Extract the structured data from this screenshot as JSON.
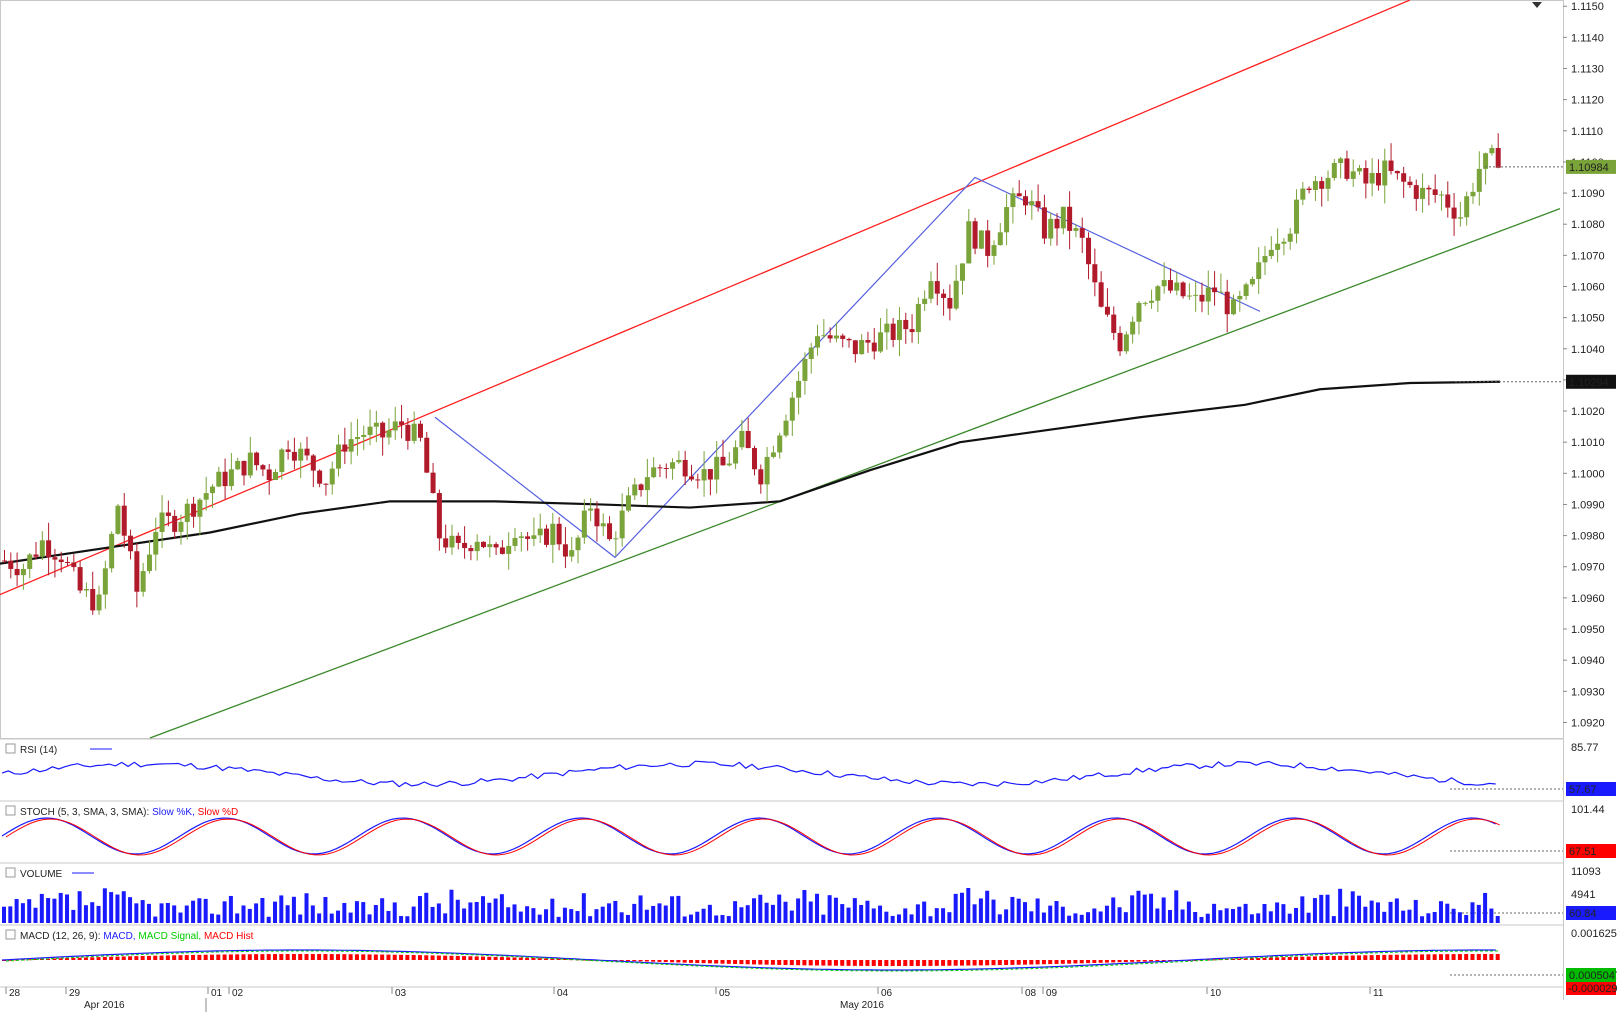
{
  "chart_data": {
    "type": "candlestick",
    "price_axis": {
      "ticks": [
        "1.1150",
        "1.1140",
        "1.1130",
        "1.1120",
        "1.1110",
        "1.1100",
        "1.1090",
        "1.1080",
        "1.1070",
        "1.1060",
        "1.1050",
        "1.1040",
        "1.1030",
        "1.1020",
        "1.1010",
        "1.1000",
        "1.0990",
        "1.0980",
        "1.0970",
        "1.0960",
        "1.0950",
        "1.0940",
        "1.0930",
        "1.0920"
      ],
      "range": [
        1.0915,
        1.1152
      ],
      "last_price": "1.10984",
      "ma_value": "1.10294"
    },
    "time_axis": {
      "day_labels": [
        "28",
        "29",
        "01",
        "02",
        "03",
        "04",
        "05",
        "06",
        "08",
        "09",
        "10",
        "11"
      ],
      "month_labels": [
        "Apr 2016",
        "May 2016"
      ]
    },
    "candles_ohlc_anchor_closes": [
      1.0972,
      1.097,
      1.0978,
      1.0974,
      1.0962,
      1.0958,
      1.099,
      1.0962,
      1.0983,
      1.0985,
      1.099,
      1.0996,
      1.1,
      1.1004,
      1.1,
      1.101,
      1.1004,
      1.0998,
      1.101,
      1.1013,
      1.1012,
      1.1016,
      1.101,
      1.098,
      1.0975,
      1.098,
      1.0973,
      1.0983,
      1.0977,
      1.0982,
      1.0973,
      1.099,
      1.0978,
      1.099,
      1.1,
      1.1003,
      1.1003,
      1.1,
      1.1002,
      1.101,
      1.1,
      1.1015,
      1.103,
      1.1046,
      1.1042,
      1.104,
      1.1043,
      1.1045,
      1.1048,
      1.1065,
      1.1055,
      1.1078,
      1.1072,
      1.1085,
      1.1089,
      1.1078,
      1.1082,
      1.1074,
      1.1052,
      1.1042,
      1.1056,
      1.106,
      1.1058,
      1.1055,
      1.1059,
      1.1052,
      1.106,
      1.1075,
      1.108,
      1.1094,
      1.1096,
      1.1098,
      1.1093,
      1.1097,
      1.1093,
      1.109,
      1.1089,
      1.1083,
      1.1098,
      1.1102
    ],
    "moving_average": {
      "value": "1.10294",
      "points": [
        [
          0,
          1.0971
        ],
        [
          0.07,
          1.0976
        ],
        [
          0.14,
          1.0981
        ],
        [
          0.2,
          1.0987
        ],
        [
          0.26,
          1.0991
        ],
        [
          0.33,
          1.0991
        ],
        [
          0.4,
          1.099
        ],
        [
          0.46,
          1.0989
        ],
        [
          0.52,
          1.0991
        ],
        [
          0.58,
          1.1001
        ],
        [
          0.64,
          1.101
        ],
        [
          0.7,
          1.1014
        ],
        [
          0.76,
          1.1018
        ],
        [
          0.83,
          1.1022
        ],
        [
          0.88,
          1.1027
        ],
        [
          0.94,
          1.1029
        ],
        [
          1.0,
          1.10294
        ]
      ]
    },
    "trendlines": [
      {
        "color": "#ff2020",
        "from": [
          -0.02,
          1.0957
        ],
        "to": [
          0.94,
          1.1152
        ]
      },
      {
        "color": "#3a8a2a",
        "from": [
          0.1,
          1.0915
        ],
        "to": [
          1.04,
          1.1085
        ]
      },
      {
        "color": "#5560e0",
        "zigzag": [
          [
            0.29,
            1.1018
          ],
          [
            0.41,
            1.0973
          ],
          [
            0.65,
            1.1095
          ],
          [
            0.84,
            1.1052
          ]
        ]
      }
    ],
    "indicators": [
      {
        "label": "RSI (14)",
        "series": [
          "RSI"
        ],
        "axis_top": "85.77",
        "value": "57.67",
        "value_color": "#1a1aff"
      },
      {
        "label": "STOCH (5, 3, SMA, 3, SMA):",
        "series": [
          "Slow %K",
          "Slow %D"
        ],
        "series_colors": [
          "#1a1aff",
          "#ff0000"
        ],
        "axis_top": "101.44",
        "value": "67.51",
        "value_color": "#ff0000"
      },
      {
        "label": "VOLUME",
        "series": [
          "Volume"
        ],
        "axis_top": "11093",
        "axis_mid": "4941",
        "value": "60.84",
        "value_color": "#1a1aff"
      },
      {
        "label": "MACD (12, 26, 9):",
        "series": [
          "MACD",
          "MACD Signal",
          "MACD Hist"
        ],
        "series_colors": [
          "#1a1aff",
          "#00cc00",
          "#ff0000"
        ],
        "axis_top": "0.0016251",
        "value": "0.0005047",
        "value_color": "#00bb00",
        "value2": "-0.0000294",
        "value2_color": "#ff0000"
      }
    ]
  }
}
